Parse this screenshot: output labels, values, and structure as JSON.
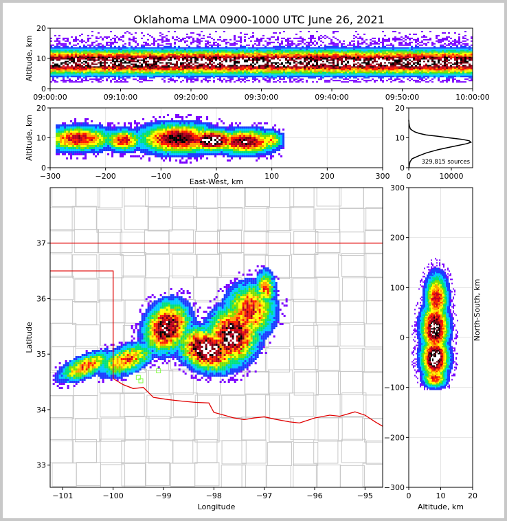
{
  "title": "Oklahoma LMA 0900-1000 UTC June 26, 2021",
  "colors": {
    "state_border": "#e00000",
    "county_lines": "#c8c8c8",
    "density_scale": [
      "#7a00ff",
      "#1a3cff",
      "#00c8ff",
      "#00e07a",
      "#7ae000",
      "#ffff00",
      "#ffa000",
      "#ff2000",
      "#c00020",
      "#7a0010",
      "#000000",
      "#ffffff"
    ],
    "station_marker": "#80ff40",
    "histogram_line": "#000000",
    "background": "#ffffff"
  },
  "chart_data": [
    {
      "id": "time-altitude",
      "type": "heatmap",
      "title": "",
      "xlabel": "",
      "ylabel": "Altitude, km",
      "x_ticks": [
        "09:00:00",
        "09:10:00",
        "09:20:00",
        "09:30:00",
        "09:40:00",
        "09:50:00",
        "10:00:00"
      ],
      "x_range": [
        "09:00:00",
        "10:00:00"
      ],
      "ylim": [
        0,
        20
      ],
      "y_ticks": [
        0,
        10,
        20
      ],
      "core_altitude_km": 8.5,
      "core_spread_km": [
        5,
        13
      ],
      "outer_extent_km": [
        2,
        19
      ]
    },
    {
      "id": "eastwest-altitude",
      "type": "heatmap",
      "xlabel": "East-West, km",
      "ylabel": "Altitude, km",
      "xlim": [
        -300,
        300
      ],
      "x_ticks": [
        -300,
        -200,
        -100,
        0,
        100,
        200,
        300
      ],
      "ylim": [
        0,
        20
      ],
      "y_ticks": [
        0,
        10,
        20
      ],
      "grid": true,
      "core_x_km": [
        -20,
        0
      ],
      "core_altitude_km": 9.5,
      "extent_x_km": [
        -290,
        120
      ]
    },
    {
      "id": "altitude-histogram",
      "type": "line",
      "xlabel": "",
      "ylabel": "",
      "xlim": [
        0,
        15000
      ],
      "x_ticks": [
        0,
        10000
      ],
      "ylim": [
        0,
        20
      ],
      "y_ticks": [
        0,
        10,
        20
      ],
      "annotation": "329,815 sources",
      "points": [
        {
          "alt": 0.0,
          "count": 80
        },
        {
          "alt": 1.0,
          "count": 140
        },
        {
          "alt": 2.0,
          "count": 300
        },
        {
          "alt": 3.0,
          "count": 800
        },
        {
          "alt": 4.0,
          "count": 2400
        },
        {
          "alt": 5.0,
          "count": 4200
        },
        {
          "alt": 6.0,
          "count": 6800
        },
        {
          "alt": 7.0,
          "count": 10000
        },
        {
          "alt": 8.0,
          "count": 13500
        },
        {
          "alt": 8.5,
          "count": 14600
        },
        {
          "alt": 9.0,
          "count": 14200
        },
        {
          "alt": 9.5,
          "count": 12500
        },
        {
          "alt": 10.0,
          "count": 9500
        },
        {
          "alt": 10.5,
          "count": 6800
        },
        {
          "alt": 11.0,
          "count": 4000
        },
        {
          "alt": 11.5,
          "count": 2400
        },
        {
          "alt": 12.0,
          "count": 1400
        },
        {
          "alt": 12.5,
          "count": 800
        },
        {
          "alt": 13.0,
          "count": 350
        },
        {
          "alt": 14.0,
          "count": 150
        },
        {
          "alt": 15.0,
          "count": 50
        },
        {
          "alt": 16.0,
          "count": 0
        }
      ]
    },
    {
      "id": "plan-view",
      "type": "heatmap",
      "xlabel": "Longitude",
      "ylabel": "Latitude",
      "xlim": [
        -101.25,
        -94.65
      ],
      "x_ticks": [
        -101,
        -100,
        -99,
        -98,
        -97,
        -96,
        -95
      ],
      "ylim": [
        32.6,
        38.0
      ],
      "y_ticks": [
        33,
        34,
        35,
        36,
        37
      ],
      "clusters": [
        {
          "lon": -100.5,
          "lat": 34.8,
          "core": false
        },
        {
          "lon": -99.7,
          "lat": 34.9,
          "core": false
        },
        {
          "lon": -98.9,
          "lat": 35.5,
          "core": true
        },
        {
          "lon": -98.1,
          "lat": 35.2,
          "core": true
        },
        {
          "lon": -97.5,
          "lat": 35.5,
          "core": true
        },
        {
          "lon": -97.05,
          "lat": 36.2,
          "core": false
        }
      ],
      "stations": [
        {
          "lon": -99.5,
          "lat": 34.58
        },
        {
          "lon": -99.45,
          "lat": 34.52
        },
        {
          "lon": -99.1,
          "lat": 34.7
        }
      ],
      "state_border_lon_lat": [
        [
          -103,
          37.0
        ],
        [
          -94.6,
          37.0
        ]
      ],
      "panhandle_border": [
        [
          -101.25,
          36.5
        ],
        [
          -100.0,
          36.5
        ],
        [
          -100.0,
          34.56
        ]
      ],
      "red_river": [
        [
          -100.0,
          34.56
        ],
        [
          -99.8,
          34.45
        ],
        [
          -99.6,
          34.38
        ],
        [
          -99.4,
          34.4
        ],
        [
          -99.2,
          34.22
        ],
        [
          -98.9,
          34.18
        ],
        [
          -98.6,
          34.15
        ],
        [
          -98.35,
          34.13
        ],
        [
          -98.1,
          34.12
        ],
        [
          -98.0,
          33.95
        ],
        [
          -97.8,
          33.9
        ],
        [
          -97.6,
          33.85
        ],
        [
          -97.4,
          33.82
        ],
        [
          -97.2,
          33.85
        ],
        [
          -97.0,
          33.87
        ],
        [
          -96.8,
          33.83
        ],
        [
          -96.5,
          33.78
        ],
        [
          -96.3,
          33.76
        ],
        [
          -96.0,
          33.85
        ],
        [
          -95.7,
          33.9
        ],
        [
          -95.5,
          33.88
        ],
        [
          -95.2,
          33.96
        ],
        [
          -95.0,
          33.9
        ],
        [
          -94.8,
          33.78
        ],
        [
          -94.65,
          33.7
        ]
      ]
    },
    {
      "id": "northsouth-altitude",
      "type": "heatmap",
      "xlabel": "Altitude, km",
      "ylabel": "North-South, km",
      "xlim": [
        0,
        20
      ],
      "x_ticks": [
        0,
        10,
        20
      ],
      "ylim": [
        -300,
        300
      ],
      "y_ticks": [
        -300,
        -200,
        -100,
        0,
        100,
        200,
        300
      ],
      "grid": true,
      "core_altitude_km": 8,
      "core_ns_km": [
        -50,
        40
      ],
      "extent_ns_km": [
        -105,
        170
      ]
    }
  ]
}
